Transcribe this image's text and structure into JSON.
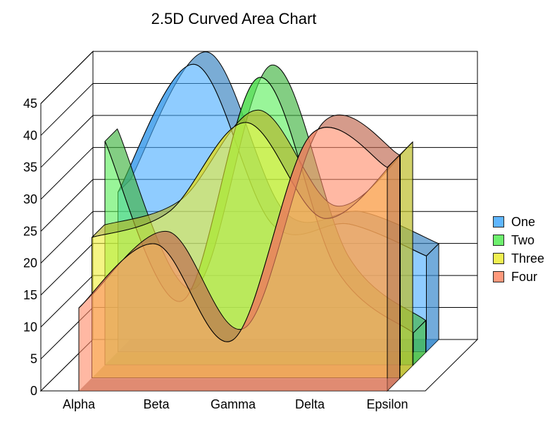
{
  "chart_data": {
    "type": "area",
    "title": "2.5D Curved Area Chart",
    "xlabel": "",
    "ylabel": "",
    "categories": [
      "Alpha",
      "Beta",
      "Gamma",
      "Delta",
      "Epsilon"
    ],
    "ylim": [
      0,
      45
    ],
    "yticks": [
      0,
      5,
      10,
      15,
      20,
      25,
      30,
      35,
      40,
      45
    ],
    "grid": true,
    "legend_position": "right",
    "series": [
      {
        "name": "One",
        "values": [
          25,
          45,
          20,
          20,
          15
        ],
        "color": "#44aaff"
      },
      {
        "name": "Two",
        "values": [
          35,
          10,
          45,
          15,
          5
        ],
        "color": "#55ee55"
      },
      {
        "name": "Three",
        "values": [
          22,
          26,
          40,
          25,
          35
        ],
        "color": "#eeee33"
      },
      {
        "name": "Four",
        "values": [
          13,
          23,
          8,
          40,
          35
        ],
        "color": "#ff8866"
      }
    ]
  }
}
